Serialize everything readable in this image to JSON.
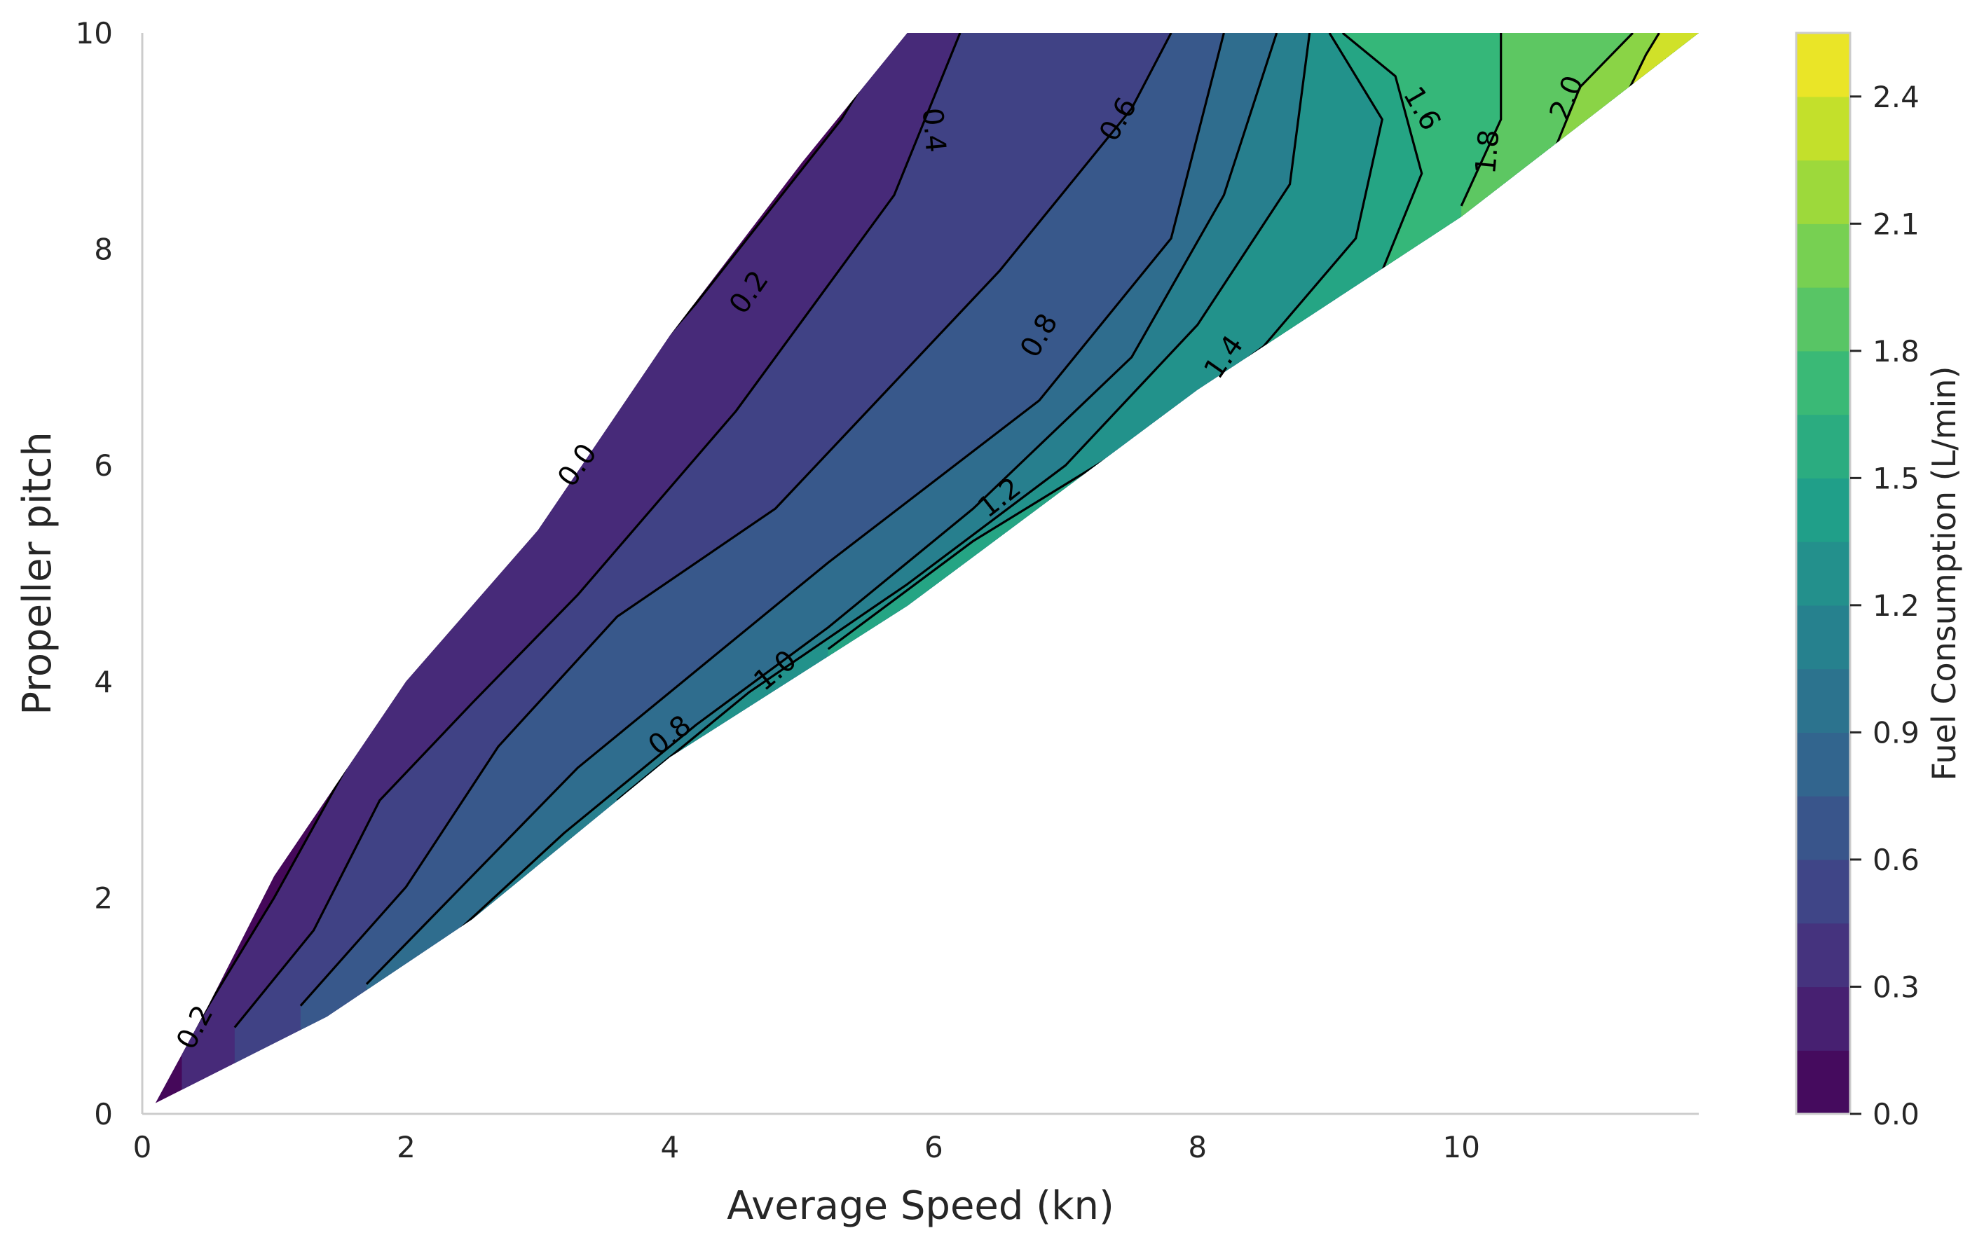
{
  "chart_data": {
    "type": "heatmap",
    "subtype": "filled-contour",
    "title": "",
    "xlabel": "Average Speed (kn)",
    "ylabel": "Propeller pitch",
    "xlim": [
      0,
      11.8
    ],
    "ylim": [
      0,
      10
    ],
    "x_ticks": [
      0,
      2,
      4,
      6,
      8,
      10
    ],
    "y_ticks": [
      0,
      2,
      4,
      6,
      8,
      10
    ],
    "x_tick_labels": [
      "0",
      "2",
      "4",
      "6",
      "8",
      "10"
    ],
    "y_tick_labels": [
      "0",
      "2",
      "4",
      "6",
      "8",
      "10"
    ],
    "grid": false,
    "colormap": "viridis",
    "colorbar": {
      "label": "Fuel Consumption (L/min)",
      "min": 0.0,
      "max": 2.55,
      "levels": 17,
      "ticks": [
        0.0,
        0.3,
        0.6,
        0.9,
        1.2,
        1.5,
        1.8,
        2.1,
        2.4
      ],
      "tick_labels": [
        "0.0",
        "0.3",
        "0.6",
        "0.9",
        "1.2",
        "1.5",
        "1.8",
        "2.1",
        "2.4"
      ]
    },
    "domain_boundary": {
      "upper_edge": [
        [
          0.1,
          0.1
        ],
        [
          0.5,
          1.0
        ],
        [
          1.0,
          2.2
        ],
        [
          2.0,
          4.0
        ],
        [
          3.0,
          5.4
        ],
        [
          4.0,
          7.2
        ],
        [
          5.0,
          8.8
        ],
        [
          5.8,
          10.0
        ]
      ],
      "lower_edge": [
        [
          0.1,
          0.1
        ],
        [
          1.4,
          0.9
        ],
        [
          2.5,
          1.8
        ],
        [
          4.0,
          3.3
        ],
        [
          5.8,
          4.7
        ],
        [
          8.0,
          6.7
        ],
        [
          10.0,
          8.3
        ],
        [
          11.8,
          10.0
        ]
      ]
    },
    "contour_lines": [
      {
        "level": 0.2,
        "label": "0.2",
        "points": [
          [
            0.3,
            0.6
          ],
          [
            1.0,
            2.0
          ],
          [
            2.0,
            4.2
          ],
          [
            3.0,
            5.8
          ],
          [
            4.2,
            7.5
          ],
          [
            5.3,
            9.2
          ],
          [
            5.7,
            10.0
          ]
        ]
      },
      {
        "level": 0.4,
        "label": "0.4",
        "points": [
          [
            0.7,
            0.8
          ],
          [
            1.3,
            1.7
          ],
          [
            1.8,
            2.9
          ],
          [
            2.5,
            3.8
          ],
          [
            3.3,
            4.8
          ],
          [
            4.5,
            6.5
          ],
          [
            5.7,
            8.5
          ],
          [
            6.2,
            10.0
          ]
        ]
      },
      {
        "level": 0.6,
        "label": "0.6",
        "points": [
          [
            1.2,
            1.0
          ],
          [
            2.0,
            2.1
          ],
          [
            2.7,
            3.4
          ],
          [
            3.6,
            4.6
          ],
          [
            4.8,
            5.6
          ],
          [
            6.5,
            7.8
          ],
          [
            7.5,
            9.3
          ],
          [
            7.8,
            10.0
          ]
        ]
      },
      {
        "level": 0.8,
        "label": "0.8",
        "points": [
          [
            1.7,
            1.2
          ],
          [
            2.5,
            2.2
          ],
          [
            3.3,
            3.2
          ],
          [
            4.3,
            4.2
          ],
          [
            5.2,
            5.1
          ],
          [
            6.8,
            6.6
          ],
          [
            7.8,
            8.1
          ],
          [
            8.2,
            10.0
          ]
        ]
      },
      {
        "level": 1.0,
        "label": "1.0",
        "points": [
          [
            2.4,
            1.7
          ],
          [
            3.2,
            2.6
          ],
          [
            4.2,
            3.6
          ],
          [
            5.2,
            4.5
          ],
          [
            6.3,
            5.6
          ],
          [
            7.5,
            7.0
          ],
          [
            8.2,
            8.5
          ],
          [
            8.6,
            10.0
          ]
        ]
      },
      {
        "level": 1.2,
        "label": "1.2",
        "points": [
          [
            3.6,
            2.9
          ],
          [
            4.6,
            3.9
          ],
          [
            5.8,
            4.9
          ],
          [
            7.0,
            6.0
          ],
          [
            8.0,
            7.3
          ],
          [
            8.7,
            8.6
          ],
          [
            8.85,
            10.0
          ]
        ]
      },
      {
        "level": 1.4,
        "label": "1.4",
        "points": [
          [
            5.2,
            4.3
          ],
          [
            6.3,
            5.3
          ],
          [
            7.5,
            6.2
          ],
          [
            8.5,
            7.1
          ],
          [
            9.2,
            8.1
          ],
          [
            9.4,
            9.2
          ],
          [
            9.0,
            10.0
          ]
        ]
      },
      {
        "level": 1.6,
        "label": "1.6",
        "points": [
          [
            9.4,
            7.8
          ],
          [
            9.7,
            8.7
          ],
          [
            9.5,
            9.6
          ],
          [
            9.1,
            10.0
          ]
        ]
      },
      {
        "level": 1.8,
        "label": "1.8",
        "points": [
          [
            10.0,
            8.4
          ],
          [
            10.3,
            9.2
          ],
          [
            10.3,
            10.0
          ]
        ]
      },
      {
        "level": 2.0,
        "label": "2.0",
        "points": [
          [
            10.7,
            8.9
          ],
          [
            10.9,
            9.5
          ],
          [
            11.3,
            10.0
          ]
        ]
      },
      {
        "level": 2.2,
        "label": "",
        "points": [
          [
            11.2,
            9.3
          ],
          [
            11.4,
            9.8
          ],
          [
            11.5,
            10.0
          ]
        ]
      }
    ],
    "contour_labels": [
      {
        "text": "0.2",
        "x": 0.4,
        "y": 0.8,
        "angle": -62
      },
      {
        "text": "0.2",
        "x": 4.6,
        "y": 7.6,
        "angle": -55
      },
      {
        "text": "0.0",
        "x": 3.3,
        "y": 6.0,
        "angle": -55
      },
      {
        "text": "0.4",
        "x": 6.0,
        "y": 9.1,
        "angle": 85
      },
      {
        "text": "0.6",
        "x": 7.4,
        "y": 9.2,
        "angle": -60
      },
      {
        "text": "0.8",
        "x": 6.8,
        "y": 7.2,
        "angle": -60
      },
      {
        "text": "0.8",
        "x": 4.0,
        "y": 3.5,
        "angle": -38
      },
      {
        "text": "1.0",
        "x": 4.8,
        "y": 4.1,
        "angle": -40
      },
      {
        "text": "1.2",
        "x": 6.5,
        "y": 5.7,
        "angle": -38
      },
      {
        "text": "1.4",
        "x": 8.2,
        "y": 7.0,
        "angle": -55
      },
      {
        "text": "1.6",
        "x": 9.7,
        "y": 9.3,
        "angle": 60
      },
      {
        "text": "1.8",
        "x": 10.2,
        "y": 8.9,
        "angle": -85
      },
      {
        "text": "2.0",
        "x": 10.8,
        "y": 9.4,
        "angle": -68
      }
    ],
    "legend": "none"
  }
}
